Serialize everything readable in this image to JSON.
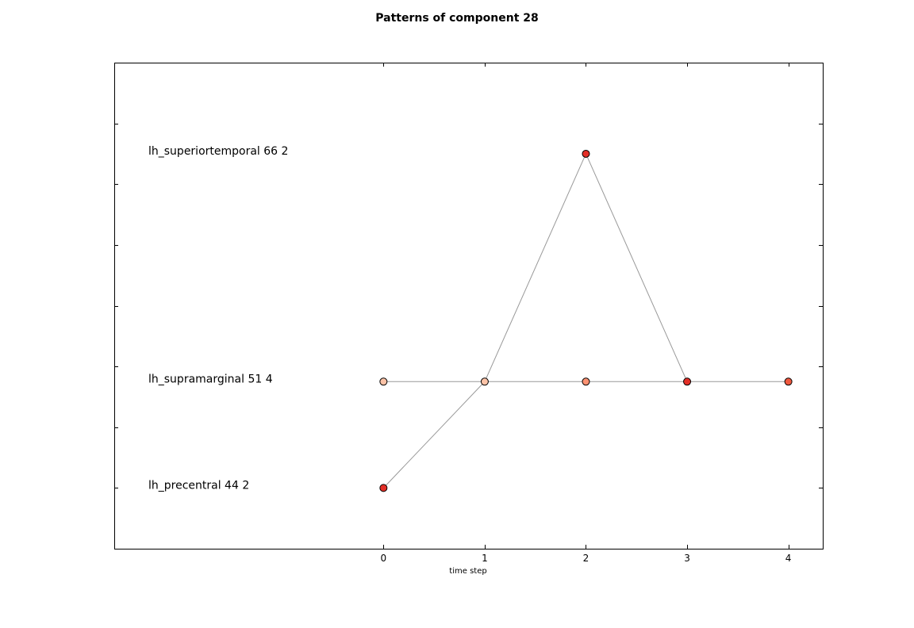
{
  "chart_data": {
    "type": "scatter",
    "title": "Patterns of component 28",
    "xlabel": "time step",
    "ylabel": "",
    "x_ticks": [
      0,
      1,
      2,
      3,
      4
    ],
    "xlim": [
      -2.66,
      4.34
    ],
    "ylim": [
      0,
      8
    ],
    "y_ticks": [
      1,
      2,
      3,
      4,
      5,
      6,
      7
    ],
    "grid": false,
    "row_labels": [
      {
        "text": "lh_superiortemporal 66 2",
        "y": 6.5
      },
      {
        "text": "lh_supramarginal 51 4",
        "y": 2.75
      },
      {
        "text": "lh_precentral 44 2",
        "y": 1.0
      }
    ],
    "points": [
      {
        "x": 0,
        "y": 2.75,
        "color": "#fcc3a7"
      },
      {
        "x": 1,
        "y": 2.75,
        "color": "#fcc3a7"
      },
      {
        "x": 2,
        "y": 2.75,
        "color": "#fc9272"
      },
      {
        "x": 3,
        "y": 2.75,
        "color": "#e32f27"
      },
      {
        "x": 4,
        "y": 2.75,
        "color": "#f0583e"
      },
      {
        "x": 2,
        "y": 6.5,
        "color": "#e32f27"
      },
      {
        "x": 0,
        "y": 1.0,
        "color": "#e32f27"
      }
    ],
    "lines": [
      {
        "x": [
          0,
          1,
          2,
          3,
          4
        ],
        "y": [
          2.75,
          2.75,
          2.75,
          2.75,
          2.75
        ]
      },
      {
        "x": [
          1,
          2,
          3
        ],
        "y": [
          2.75,
          6.5,
          2.75
        ]
      },
      {
        "x": [
          0,
          1
        ],
        "y": [
          1.0,
          2.75
        ]
      }
    ],
    "line_color": "#999999"
  }
}
